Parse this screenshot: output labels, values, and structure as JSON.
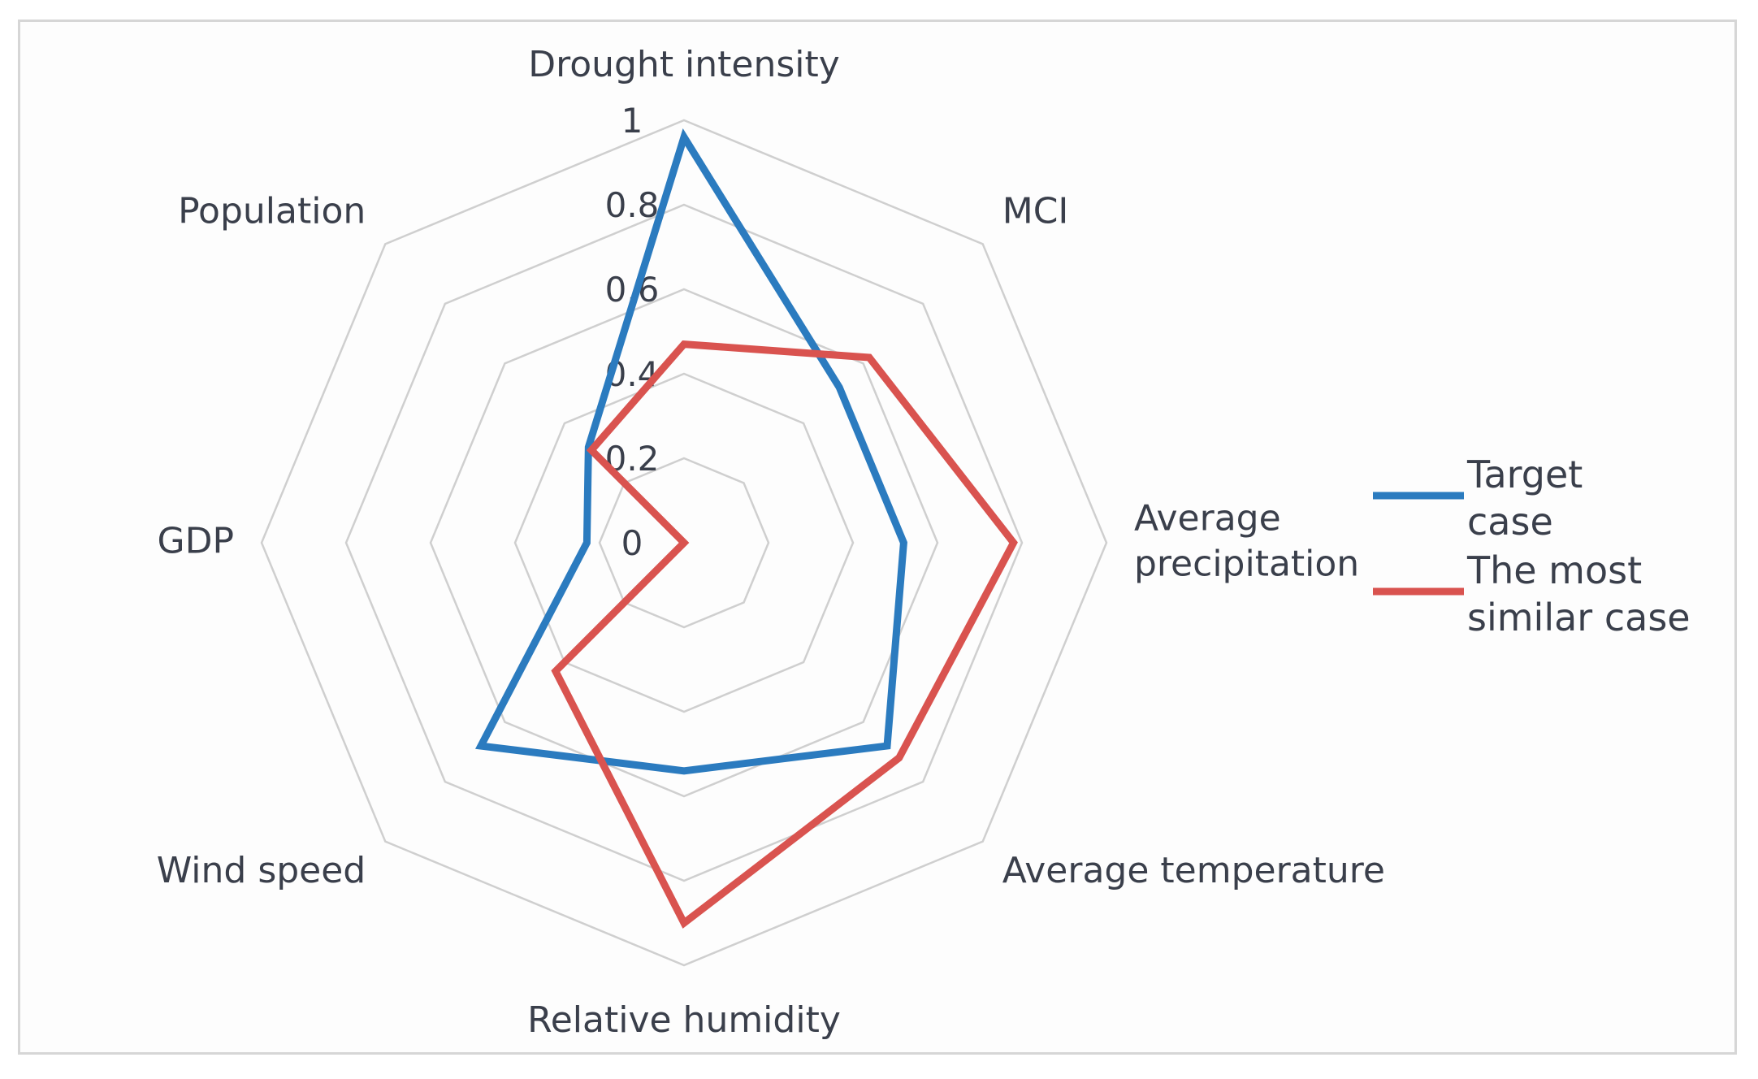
{
  "chart_data": {
    "type": "radar",
    "title": "",
    "axes": [
      "Drought intensity",
      "MCI",
      "Average precipitation",
      "Average temperature",
      "Relative humidity",
      "Wind speed",
      "GDP",
      "Population"
    ],
    "axis_label_lines": [
      [
        "Drought intensity"
      ],
      [
        "MCI"
      ],
      [
        "Average",
        "precipitation"
      ],
      [
        "Average temperature"
      ],
      [
        "Relative humidity"
      ],
      [
        "Wind speed"
      ],
      [
        "GDP"
      ],
      [
        "Population"
      ]
    ],
    "rlim": [
      0,
      1
    ],
    "ticks": [
      0,
      0.2,
      0.4,
      0.6,
      0.8,
      1
    ],
    "tick_labels": [
      "0",
      "0.2",
      "0.4",
      "0.6",
      "0.8",
      "1"
    ],
    "series": [
      {
        "name": "Target case",
        "legend_lines": [
          "Target",
          "case"
        ],
        "color": "#2b7bbf",
        "values": [
          0.96,
          0.52,
          0.52,
          0.68,
          0.54,
          0.68,
          0.23,
          0.32
        ]
      },
      {
        "name": "The most similar case",
        "legend_lines": [
          "The most",
          "similar case"
        ],
        "color": "#d9534f",
        "values": [
          0.47,
          0.62,
          0.78,
          0.72,
          0.9,
          0.43,
          0.0,
          0.31
        ]
      }
    ],
    "legend_position": "right",
    "grid": true
  }
}
